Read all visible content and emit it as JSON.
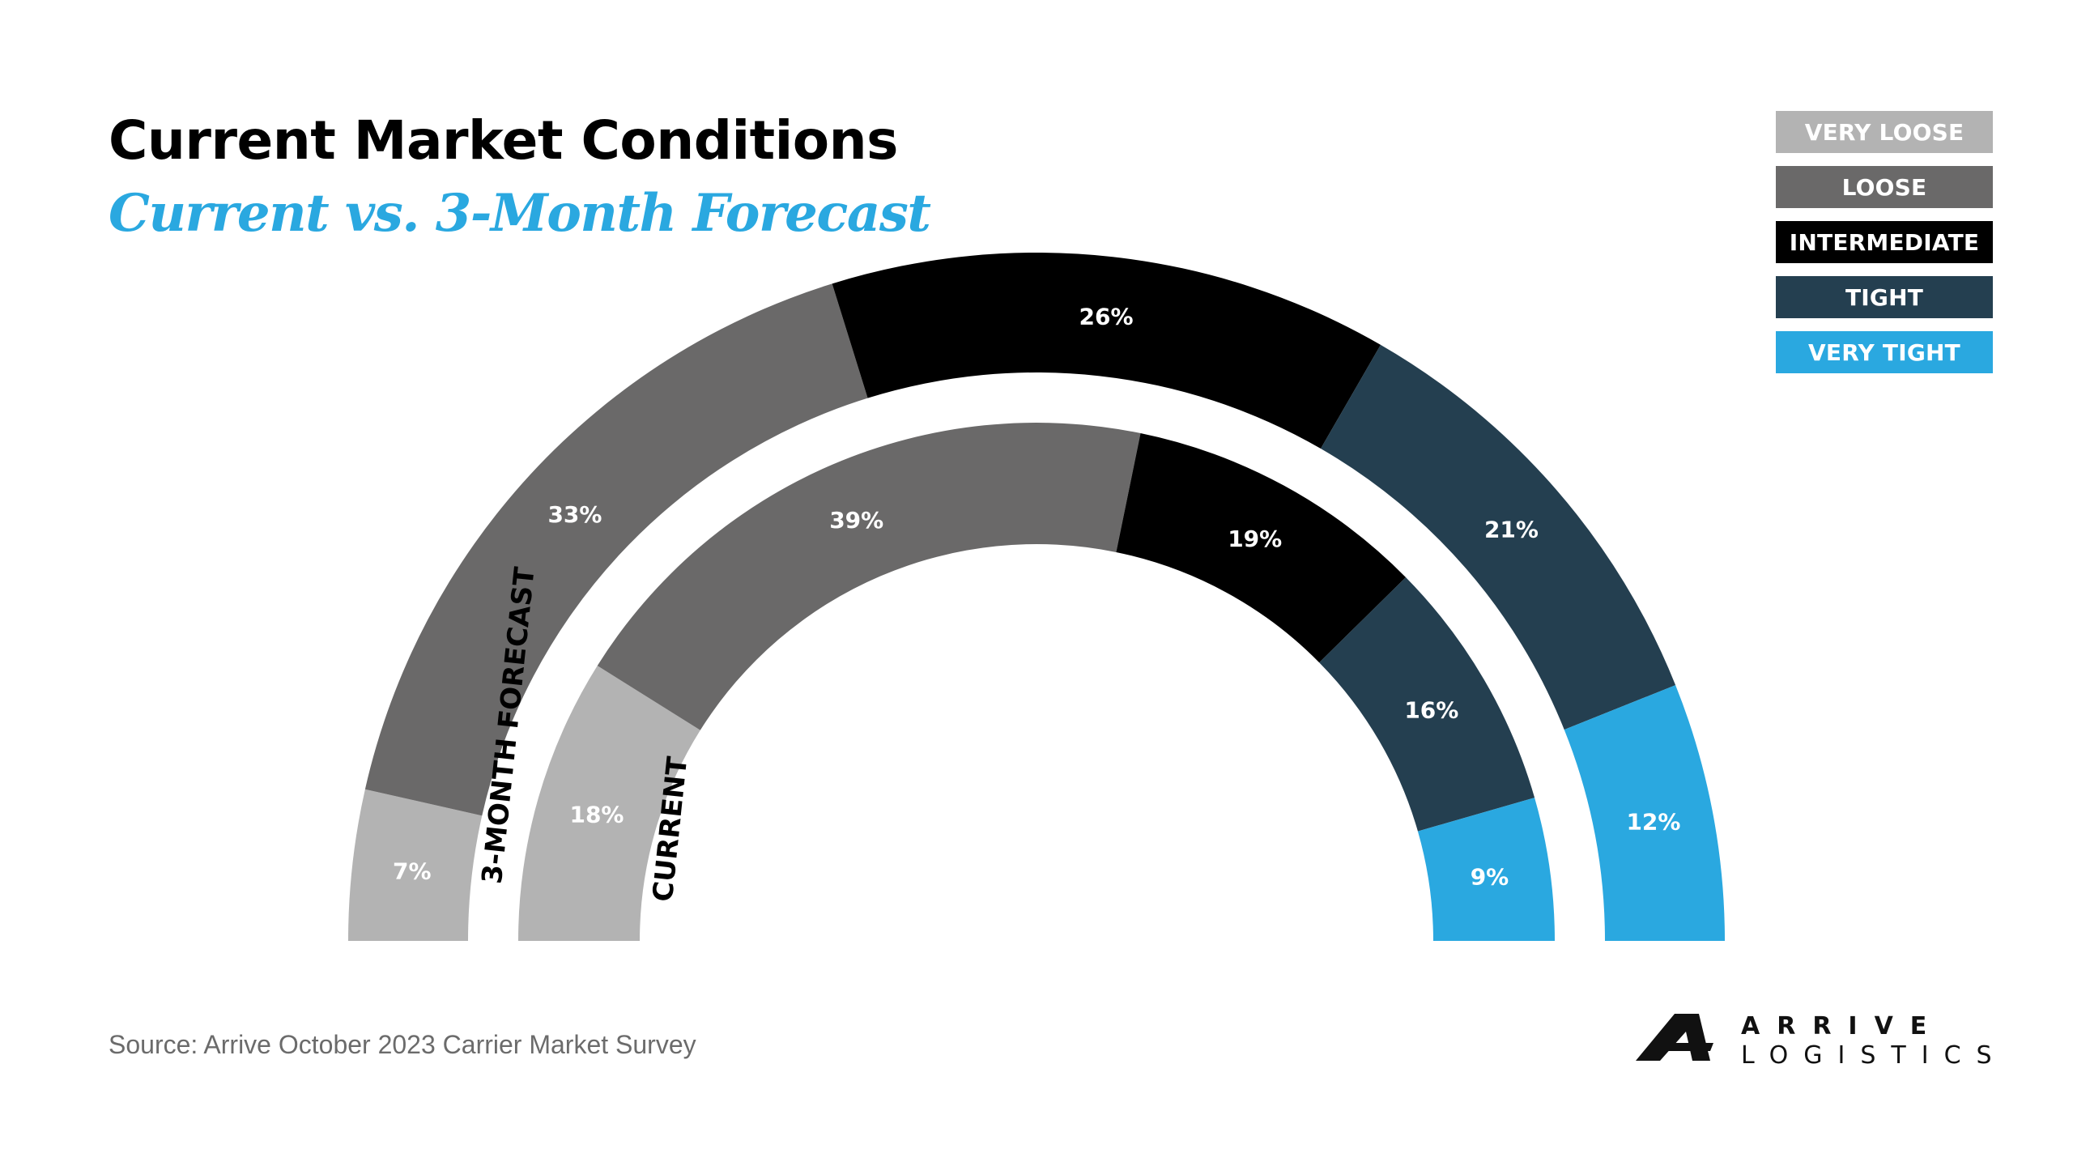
{
  "header": {
    "title": "Current Market Conditions",
    "subtitle": "Current vs. 3-Month Forecast"
  },
  "legend": [
    {
      "label": "VERY LOOSE",
      "color": "#b3b3b3"
    },
    {
      "label": "LOOSE",
      "color": "#6a6969"
    },
    {
      "label": "INTERMEDIATE",
      "color": "#000000"
    },
    {
      "label": "TIGHT",
      "color": "#243f50"
    },
    {
      "label": "VERY TIGHT",
      "color": "#2aa8e0"
    }
  ],
  "chart_data": {
    "type": "pie",
    "variant": "semicircle-donut",
    "title": "Current Market Conditions",
    "subtitle": "Current vs. 3-Month Forecast",
    "categories": [
      "VERY LOOSE",
      "LOOSE",
      "INTERMEDIATE",
      "TIGHT",
      "VERY TIGHT"
    ],
    "colors": [
      "#b3b3b3",
      "#6a6969",
      "#000000",
      "#243f50",
      "#2aa8e0"
    ],
    "series": [
      {
        "name": "3-MONTH FORECAST",
        "ring": "outer",
        "values": [
          7,
          33,
          26,
          21,
          12
        ],
        "labels": [
          "7%",
          "33%",
          "26%",
          "21%",
          "12%"
        ]
      },
      {
        "name": "CURRENT",
        "ring": "inner",
        "values": [
          18,
          39,
          19,
          16,
          9
        ],
        "labels": [
          "18%",
          "39%",
          "19%",
          "16%",
          "9%"
        ]
      }
    ],
    "value_unit": "%",
    "legend_position": "top-right"
  },
  "footer": {
    "source": "Source: Arrive October 2023 Carrier Market Survey",
    "logo_line1": "ARRIVE",
    "logo_line2": "LOGISTICS"
  }
}
